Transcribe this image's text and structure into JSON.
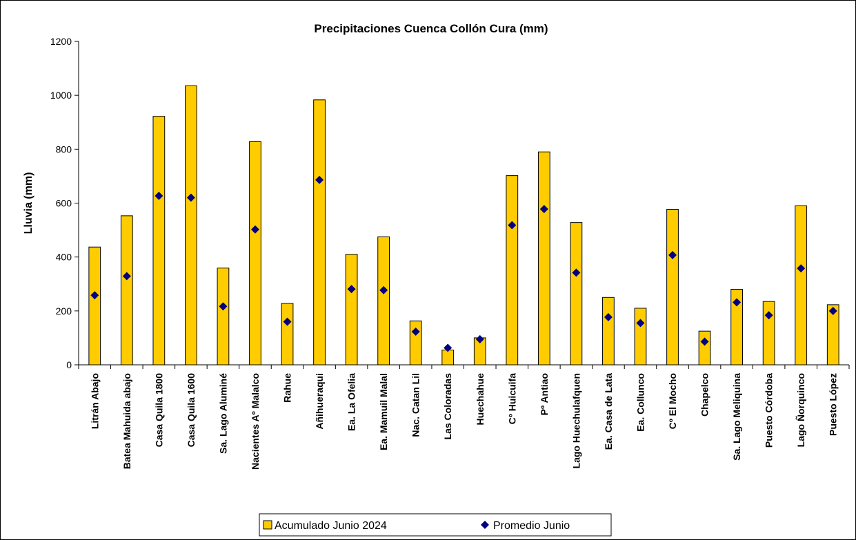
{
  "chart_data": {
    "type": "bar",
    "title": "Precipitaciones Cuenca Collón Cura (mm)",
    "xlabel": "",
    "ylabel": "Lluvia (mm)",
    "ylim": [
      0,
      1200
    ],
    "yticks": [
      0,
      200,
      400,
      600,
      800,
      1000,
      1200
    ],
    "grid": false,
    "legend_position": "bottom",
    "categories": [
      "Litrán Abajo",
      "Batea Mahuida abajo",
      "Casa Quila 1800",
      "Casa Quila 1600",
      "Sa. Lago Aluminé",
      "Nacientes Aº Malalco",
      "Rahue",
      "Añihueraqui",
      "Ea. La Ofelia",
      "Ea. Mamuil Malal",
      "Nac. Catan Lil",
      "Las Coloradas",
      "Huechahue",
      "Cº Huicuifa",
      "Pº Antiao",
      "Lago Huechulafquen",
      "Ea. Casa de Lata",
      "Ea. Collunco",
      "Cº El Mocho",
      "Chapelco",
      "Sa. Lago Meliquina",
      "Puesto Córdoba",
      "Lago Ñorquinco",
      "Puesto López"
    ],
    "series": [
      {
        "name": "Acumulado Junio 2024",
        "kind": "bar",
        "color": "#FFCC00",
        "values": [
          437,
          553,
          922,
          1035,
          359,
          828,
          228,
          983,
          410,
          475,
          163,
          55,
          100,
          702,
          790,
          528,
          250,
          210,
          577,
          125,
          280,
          235,
          590,
          223
        ]
      },
      {
        "name": "Promedio Junio",
        "kind": "marker",
        "color": "#000080",
        "values": [
          258,
          329,
          627,
          620,
          217,
          502,
          160,
          686,
          281,
          277,
          123,
          63,
          95,
          518,
          578,
          342,
          177,
          155,
          407,
          86,
          232,
          184,
          358,
          200
        ]
      }
    ]
  }
}
